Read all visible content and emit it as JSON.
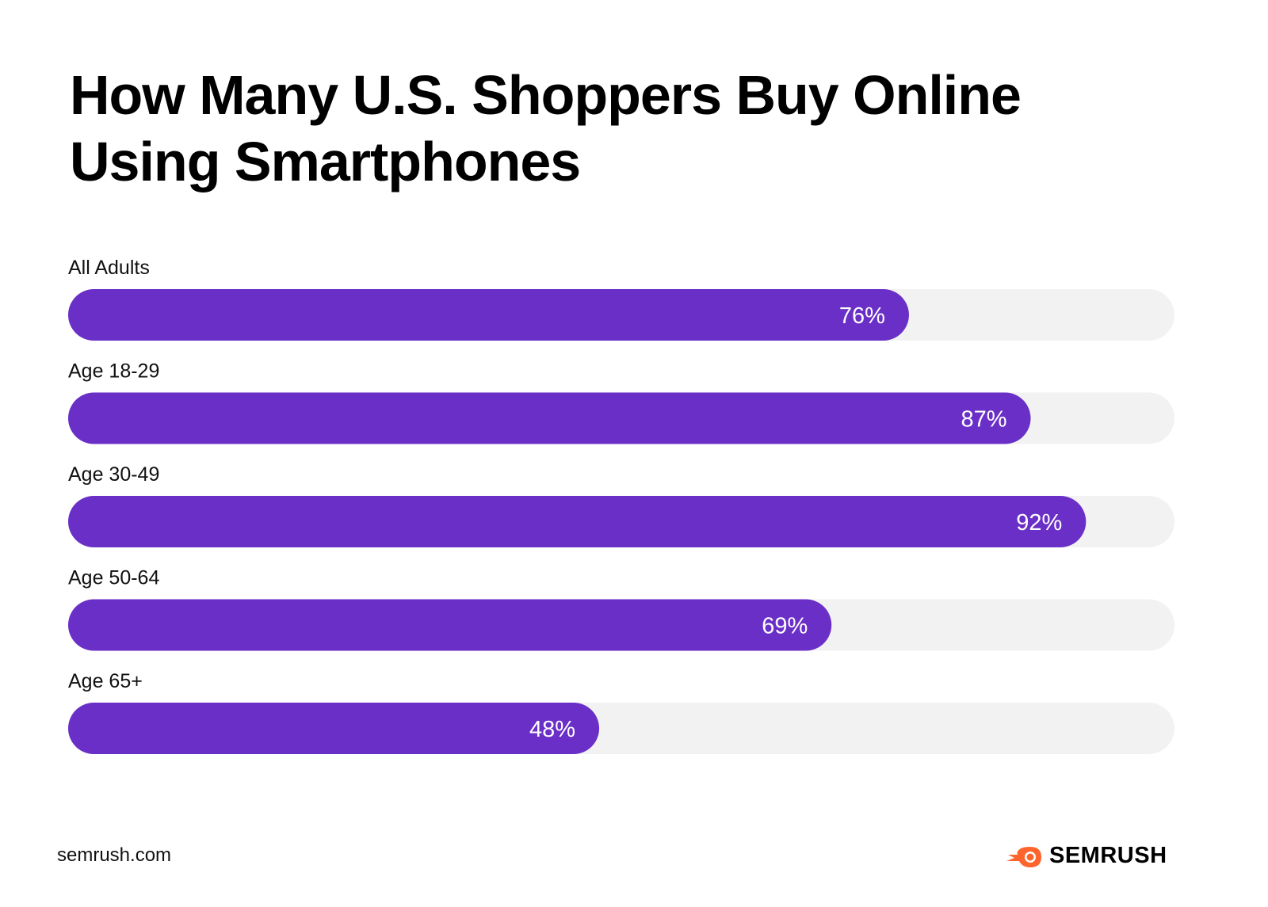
{
  "chart_data": {
    "type": "bar",
    "orientation": "horizontal",
    "title": "How Many U.S. Shoppers Buy Online Using Smartphones",
    "categories": [
      "All Adults",
      "Age 18-29",
      "Age 30-49",
      "Age 50-64",
      "Age 65+"
    ],
    "values": [
      76,
      87,
      92,
      69,
      48
    ],
    "value_labels": [
      "76%",
      "87%",
      "92%",
      "69%",
      "48%"
    ],
    "xlim": [
      0,
      100
    ],
    "unit": "%",
    "grid": false,
    "bar_color": "#6A2FC7",
    "track_color": "#F2F2F2"
  },
  "footer": {
    "url": "semrush.com",
    "brand": "SEMRUSH",
    "brand_color": "#FF642D"
  }
}
